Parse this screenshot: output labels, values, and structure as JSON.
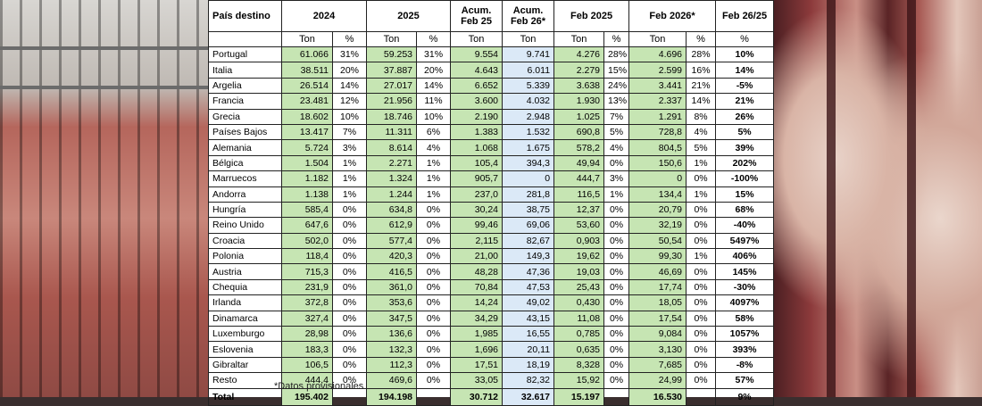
{
  "header": {
    "country": "País destino",
    "y2024": "2024",
    "y2025": "2025",
    "acum25": [
      "Acum.",
      "Feb 25"
    ],
    "acum26": [
      "Acum.",
      "Feb 26*"
    ],
    "feb2025": "Feb 2025",
    "feb2026": "Feb 2026*",
    "var": "Feb 26/25"
  },
  "units": {
    "ton": "Ton",
    "pct": "%"
  },
  "rows": [
    [
      "Portugal",
      "61.066",
      "31%",
      "59.253",
      "31%",
      "9.554",
      "9.741",
      "4.276",
      "28%",
      "4.696",
      "28%",
      "10%"
    ],
    [
      "Italia",
      "38.511",
      "20%",
      "37.887",
      "20%",
      "4.643",
      "6.011",
      "2.279",
      "15%",
      "2.599",
      "16%",
      "14%"
    ],
    [
      "Argelia",
      "26.514",
      "14%",
      "27.017",
      "14%",
      "6.652",
      "5.339",
      "3.638",
      "24%",
      "3.441",
      "21%",
      "-5%"
    ],
    [
      "Francia",
      "23.481",
      "12%",
      "21.956",
      "11%",
      "3.600",
      "4.032",
      "1.930",
      "13%",
      "2.337",
      "14%",
      "21%"
    ],
    [
      "Grecia",
      "18.602",
      "10%",
      "18.746",
      "10%",
      "2.190",
      "2.948",
      "1.025",
      "7%",
      "1.291",
      "8%",
      "26%"
    ],
    [
      "Países Bajos",
      "13.417",
      "7%",
      "11.311",
      "6%",
      "1.383",
      "1.532",
      "690,8",
      "5%",
      "728,8",
      "4%",
      "5%"
    ],
    [
      "Alemania",
      "5.724",
      "3%",
      "8.614",
      "4%",
      "1.068",
      "1.675",
      "578,2",
      "4%",
      "804,5",
      "5%",
      "39%"
    ],
    [
      "Bélgica",
      "1.504",
      "1%",
      "2.271",
      "1%",
      "105,4",
      "394,3",
      "49,94",
      "0%",
      "150,6",
      "1%",
      "202%"
    ],
    [
      "Marruecos",
      "1.182",
      "1%",
      "1.324",
      "1%",
      "905,7",
      "0",
      "444,7",
      "3%",
      "0",
      "0%",
      "-100%"
    ],
    [
      "Andorra",
      "1.138",
      "1%",
      "1.244",
      "1%",
      "237,0",
      "281,8",
      "116,5",
      "1%",
      "134,4",
      "1%",
      "15%"
    ],
    [
      "Hungría",
      "585,4",
      "0%",
      "634,8",
      "0%",
      "30,24",
      "38,75",
      "12,37",
      "0%",
      "20,79",
      "0%",
      "68%"
    ],
    [
      "Reino Unido",
      "647,6",
      "0%",
      "612,9",
      "0%",
      "99,46",
      "69,06",
      "53,60",
      "0%",
      "32,19",
      "0%",
      "-40%"
    ],
    [
      "Croacia",
      "502,0",
      "0%",
      "577,4",
      "0%",
      "2,115",
      "82,67",
      "0,903",
      "0%",
      "50,54",
      "0%",
      "5497%"
    ],
    [
      "Polonia",
      "118,4",
      "0%",
      "420,3",
      "0%",
      "21,00",
      "149,3",
      "19,62",
      "0%",
      "99,30",
      "1%",
      "406%"
    ],
    [
      "Austria",
      "715,3",
      "0%",
      "416,5",
      "0%",
      "48,28",
      "47,36",
      "19,03",
      "0%",
      "46,69",
      "0%",
      "145%"
    ],
    [
      "Chequia",
      "231,9",
      "0%",
      "361,0",
      "0%",
      "70,84",
      "47,53",
      "25,43",
      "0%",
      "17,74",
      "0%",
      "-30%"
    ],
    [
      "Irlanda",
      "372,8",
      "0%",
      "353,6",
      "0%",
      "14,24",
      "49,02",
      "0,430",
      "0%",
      "18,05",
      "0%",
      "4097%"
    ],
    [
      "Dinamarca",
      "327,4",
      "0%",
      "347,5",
      "0%",
      "34,29",
      "43,15",
      "11,08",
      "0%",
      "17,54",
      "0%",
      "58%"
    ],
    [
      "Luxemburgo",
      "28,98",
      "0%",
      "136,6",
      "0%",
      "1,985",
      "16,55",
      "0,785",
      "0%",
      "9,084",
      "0%",
      "1057%"
    ],
    [
      "Eslovenia",
      "183,3",
      "0%",
      "132,3",
      "0%",
      "1,696",
      "20,11",
      "0,635",
      "0%",
      "3,130",
      "0%",
      "393%"
    ],
    [
      "Gibraltar",
      "106,5",
      "0%",
      "112,3",
      "0%",
      "17,51",
      "18,19",
      "8,328",
      "0%",
      "7,685",
      "0%",
      "-8%"
    ],
    [
      "Resto",
      "444,4",
      "0%",
      "469,6",
      "0%",
      "33,05",
      "82,32",
      "15,92",
      "0%",
      "24,99",
      "0%",
      "57%"
    ]
  ],
  "total": [
    "Total",
    "195.402",
    "",
    "194.198",
    "",
    "30.712",
    "32.617",
    "15.197",
    "",
    "16.530",
    "",
    "9%"
  ],
  "footnote": "*Datos provisionales",
  "colors": {
    "green": "#c6e5b3",
    "blue": "#dbe9f7"
  }
}
